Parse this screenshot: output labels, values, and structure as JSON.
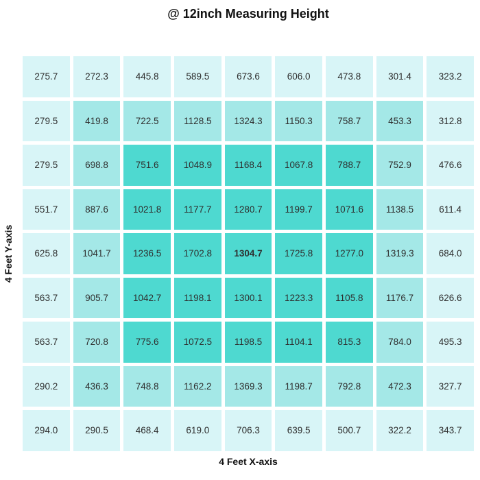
{
  "chart_data": {
    "type": "heatmap",
    "title": "@ 12inch Measuring Height",
    "xlabel": "4 Feet X-axis",
    "ylabel": "4 Feet Y-axis",
    "rows": 9,
    "cols": 9,
    "values": [
      [
        "275.7",
        "272.3",
        "445.8",
        "589.5",
        "673.6",
        "606.0",
        "473.8",
        "301.4",
        "323.2"
      ],
      [
        "279.5",
        "419.8",
        "722.5",
        "1128.5",
        "1324.3",
        "1150.3",
        "758.7",
        "453.3",
        "312.8"
      ],
      [
        "279.5",
        "698.8",
        "751.6",
        "1048.9",
        "1168.4",
        "1067.8",
        "788.7",
        "752.9",
        "476.6"
      ],
      [
        "551.7",
        "887.6",
        "1021.8",
        "1177.7",
        "1280.7",
        "1199.7",
        "1071.6",
        "1138.5",
        "611.4"
      ],
      [
        "625.8",
        "1041.7",
        "1236.5",
        "1702.8",
        "1304.7",
        "1725.8",
        "1277.0",
        "1319.3",
        "684.0"
      ],
      [
        "563.7",
        "905.7",
        "1042.7",
        "1198.1",
        "1300.1",
        "1223.3",
        "1105.8",
        "1176.7",
        "626.6"
      ],
      [
        "563.7",
        "720.8",
        "775.6",
        "1072.5",
        "1198.5",
        "1104.1",
        "815.3",
        "784.0",
        "495.3"
      ],
      [
        "290.2",
        "436.3",
        "748.8",
        "1162.2",
        "1369.3",
        "1198.7",
        "792.8",
        "472.3",
        "327.7"
      ],
      [
        "294.0",
        "290.5",
        "468.4",
        "619.0",
        "706.3",
        "639.5",
        "500.7",
        "322.2",
        "343.7"
      ]
    ],
    "bold_cell": {
      "row": 4,
      "col": 4,
      "value": "1304.7"
    },
    "colors": {
      "cell_outer_ring": "#d8f5f7",
      "cell_middle_ring": "#a4e8e7",
      "cell_inner": "#4ed9d0",
      "grid_gap": "#ffffff",
      "value_text": "#2e2e2e"
    },
    "legend": "none",
    "grid_lines": "white gaps between cells"
  }
}
